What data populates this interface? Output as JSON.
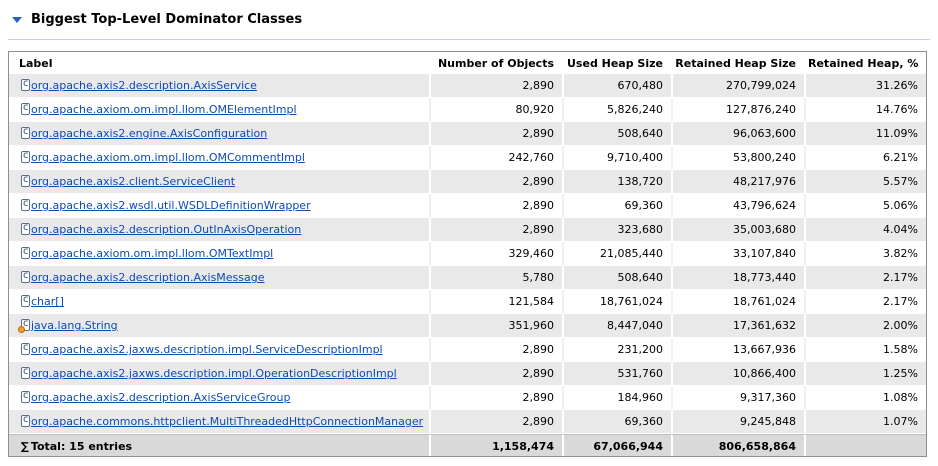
{
  "section": {
    "title": "Biggest Top-Level Dominator Classes"
  },
  "columns": [
    "Label",
    "Number of Objects",
    "Used Heap Size",
    "Retained Heap Size",
    "Retained Heap, %"
  ],
  "rows": [
    {
      "label": "org.apache.axis2.description.AxisService",
      "objects": "2,890",
      "used": "670,480",
      "retained": "270,799,024",
      "pct": "31.26%",
      "icon": "class-icon"
    },
    {
      "label": "org.apache.axiom.om.impl.llom.OMElementImpl",
      "objects": "80,920",
      "used": "5,826,240",
      "retained": "127,876,240",
      "pct": "14.76%",
      "icon": "class-icon"
    },
    {
      "label": "org.apache.axis2.engine.AxisConfiguration",
      "objects": "2,890",
      "used": "508,640",
      "retained": "96,063,600",
      "pct": "11.09%",
      "icon": "class-icon"
    },
    {
      "label": "org.apache.axiom.om.impl.llom.OMCommentImpl",
      "objects": "242,760",
      "used": "9,710,400",
      "retained": "53,800,240",
      "pct": "6.21%",
      "icon": "class-icon"
    },
    {
      "label": "org.apache.axis2.client.ServiceClient",
      "objects": "2,890",
      "used": "138,720",
      "retained": "48,217,976",
      "pct": "5.57%",
      "icon": "class-icon"
    },
    {
      "label": "org.apache.axis2.wsdl.util.WSDLDefinitionWrapper",
      "objects": "2,890",
      "used": "69,360",
      "retained": "43,796,624",
      "pct": "5.06%",
      "icon": "class-icon"
    },
    {
      "label": "org.apache.axis2.description.OutInAxisOperation",
      "objects": "2,890",
      "used": "323,680",
      "retained": "35,003,680",
      "pct": "4.04%",
      "icon": "class-icon"
    },
    {
      "label": "org.apache.axiom.om.impl.llom.OMTextImpl",
      "objects": "329,460",
      "used": "21,085,440",
      "retained": "33,107,840",
      "pct": "3.82%",
      "icon": "class-icon"
    },
    {
      "label": "org.apache.axis2.description.AxisMessage",
      "objects": "5,780",
      "used": "508,640",
      "retained": "18,773,440",
      "pct": "2.17%",
      "icon": "class-icon"
    },
    {
      "label": "char[]",
      "objects": "121,584",
      "used": "18,761,024",
      "retained": "18,761,024",
      "pct": "2.17%",
      "icon": "class-icon"
    },
    {
      "label": "java.lang.String",
      "objects": "351,960",
      "used": "8,447,040",
      "retained": "17,361,632",
      "pct": "2.00%",
      "icon": "class-gc-root-icon"
    },
    {
      "label": "org.apache.axis2.jaxws.description.impl.ServiceDescriptionImpl",
      "objects": "2,890",
      "used": "231,200",
      "retained": "13,667,936",
      "pct": "1.58%",
      "icon": "class-icon"
    },
    {
      "label": "org.apache.axis2.jaxws.description.impl.OperationDescriptionImpl",
      "objects": "2,890",
      "used": "531,760",
      "retained": "10,866,400",
      "pct": "1.25%",
      "icon": "class-icon"
    },
    {
      "label": "org.apache.axis2.description.AxisServiceGroup",
      "objects": "2,890",
      "used": "184,960",
      "retained": "9,317,360",
      "pct": "1.08%",
      "icon": "class-icon"
    },
    {
      "label": "org.apache.commons.httpclient.MultiThreadedHttpConnectionManager",
      "objects": "2,890",
      "used": "69,360",
      "retained": "9,245,848",
      "pct": "1.07%",
      "icon": "class-icon"
    }
  ],
  "total": {
    "symbol": "∑",
    "label": "Total: 15 entries",
    "objects": "1,158,474",
    "used": "67,066,944",
    "retained": "806,658,864",
    "pct": ""
  }
}
